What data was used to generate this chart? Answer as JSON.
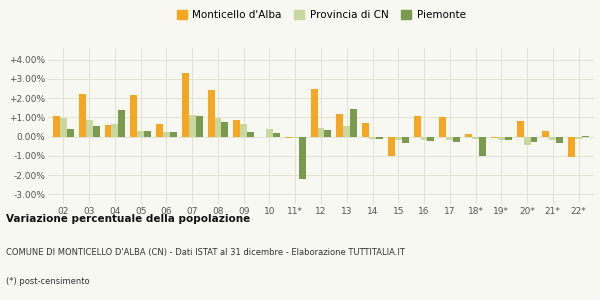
{
  "categories": [
    "02",
    "03",
    "04",
    "05",
    "06",
    "07",
    "08",
    "09",
    "10",
    "11*",
    "12",
    "13",
    "14",
    "15",
    "16",
    "17",
    "18*",
    "19*",
    "20*",
    "21*",
    "22*"
  ],
  "monticello": [
    1.05,
    2.2,
    0.6,
    2.15,
    0.65,
    3.3,
    2.4,
    0.85,
    0.0,
    -0.05,
    2.45,
    1.15,
    0.7,
    -1.0,
    1.05,
    1.0,
    0.15,
    -0.05,
    0.8,
    0.3,
    -1.05
  ],
  "provincia": [
    0.95,
    0.85,
    0.65,
    0.3,
    0.25,
    1.1,
    0.95,
    0.65,
    0.4,
    -0.05,
    0.45,
    0.55,
    -0.1,
    -0.2,
    -0.2,
    -0.2,
    -0.1,
    -0.2,
    -0.45,
    -0.2,
    -0.1
  ],
  "piemonte": [
    0.4,
    0.55,
    1.4,
    0.3,
    0.25,
    1.05,
    0.75,
    0.25,
    0.2,
    -2.2,
    0.35,
    1.45,
    -0.15,
    -0.35,
    -0.25,
    -0.3,
    -1.0,
    -0.2,
    -0.3,
    -0.35,
    0.05
  ],
  "color_monticello": "#f5a623",
  "color_provincia": "#c8d8a0",
  "color_piemonte": "#7a9a50",
  "bg_color": "#f8f8f2",
  "grid_color": "#e0e0d0",
  "title_bold": "Variazione percentuale della popolazione",
  "subtitle1": "COMUNE DI MONTICELLO D'ALBA (CN) - Dati ISTAT al 31 dicembre - Elaborazione TUTTITALIA.IT",
  "subtitle2": "(*) post-censimento",
  "legend_labels": [
    "Monticello d'Alba",
    "Provincia di CN",
    "Piemonte"
  ],
  "ylim": [
    -3.5,
    4.6
  ],
  "yticks": [
    -3.0,
    -2.0,
    -1.0,
    0.0,
    1.0,
    2.0,
    3.0,
    4.0
  ],
  "ytick_labels": [
    "-3.00%",
    "-2.00%",
    "-1.00%",
    "0.00%",
    "+1.00%",
    "+2.00%",
    "+3.00%",
    "+4.00%"
  ]
}
